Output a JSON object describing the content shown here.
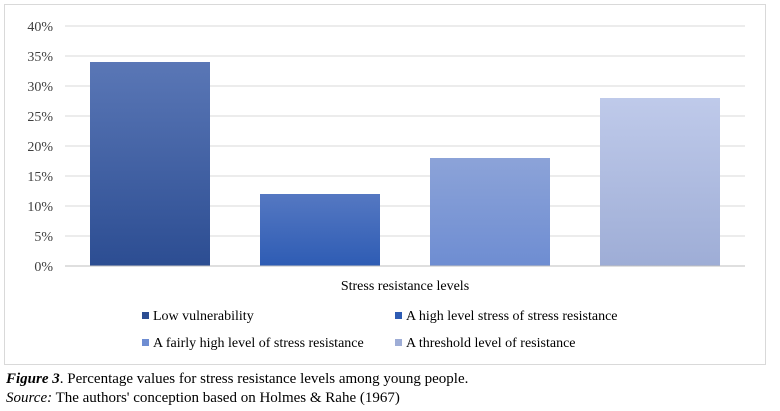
{
  "chart_data": {
    "type": "bar",
    "title": "",
    "xlabel": "Stress resistance levels",
    "ylabel": "",
    "ylim": [
      0,
      40
    ],
    "yticks": [
      "0%",
      "5%",
      "10%",
      "15%",
      "20%",
      "25%",
      "30%",
      "35%",
      "40%"
    ],
    "ytick_values": [
      0,
      5,
      10,
      15,
      20,
      25,
      30,
      35,
      40
    ],
    "grid": true,
    "legend_position": "bottom",
    "series": [
      {
        "name": "Low vulnerability",
        "value": 34,
        "color_top": "#5a77b6",
        "color_bottom": "#2c4d92"
      },
      {
        "name": "A high level stress of stress resistance",
        "value": 12,
        "color_top": "#5578c2",
        "color_bottom": "#2e5cb4"
      },
      {
        "name": "A fairly high level of stress resistance",
        "value": 18,
        "color_top": "#8ca3d8",
        "color_bottom": "#6e8dd2"
      },
      {
        "name": "A threshold level of resistance",
        "value": 28,
        "color_top": "#bfcaea",
        "color_bottom": "#9eadd6"
      }
    ]
  },
  "caption": {
    "figure_label": "Figure 3",
    "figure_text": ". Percentage values for stress resistance levels among young people.",
    "source_label": "Source:",
    "source_text": " The authors' conception based on Holmes & Rahe (1967)"
  }
}
